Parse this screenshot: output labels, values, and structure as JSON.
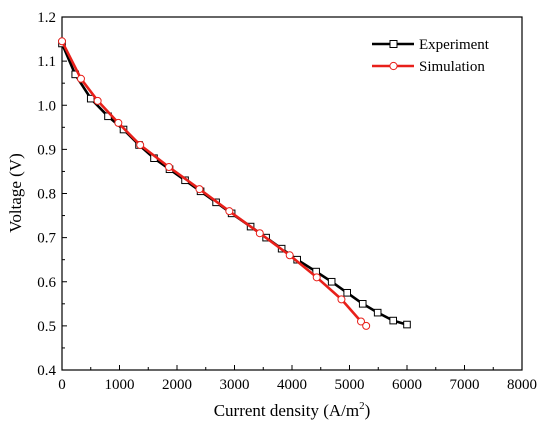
{
  "chart_data": {
    "type": "line",
    "title": "",
    "xlabel": "Current density (A/m",
    "xlabel_sup": "2",
    "xlabel_end": ")",
    "ylabel": "Voltage (V)",
    "xlim": [
      0,
      8000
    ],
    "ylim": [
      0.4,
      1.2
    ],
    "xticks": [
      "0",
      "1000",
      "2000",
      "3000",
      "4000",
      "5000",
      "6000",
      "7000",
      "8000"
    ],
    "yticks": [
      "0.4",
      "0.5",
      "0.6",
      "0.7",
      "0.8",
      "0.9",
      "1.0",
      "1.1",
      "1.2"
    ],
    "grid": false,
    "legend_position": "top-right",
    "series": [
      {
        "name": "Experiment",
        "color": "#000000",
        "marker": "square",
        "x": [
          0,
          230,
          500,
          800,
          1070,
          1340,
          1600,
          1870,
          2140,
          2410,
          2680,
          2950,
          3280,
          3550,
          3820,
          4090,
          4420,
          4690,
          4960,
          5230,
          5490,
          5760,
          6000
        ],
        "y": [
          1.14,
          1.07,
          1.015,
          0.975,
          0.945,
          0.91,
          0.88,
          0.855,
          0.83,
          0.805,
          0.78,
          0.755,
          0.725,
          0.7,
          0.675,
          0.65,
          0.623,
          0.6,
          0.575,
          0.55,
          0.53,
          0.512,
          0.503
        ]
      },
      {
        "name": "Simulation",
        "color": "#e8201a",
        "marker": "circle",
        "x": [
          0,
          330,
          620,
          980,
          1360,
          1860,
          2390,
          2910,
          3440,
          3960,
          4430,
          4860,
          5200,
          5290
        ],
        "y": [
          1.145,
          1.06,
          1.01,
          0.96,
          0.91,
          0.86,
          0.81,
          0.76,
          0.71,
          0.66,
          0.61,
          0.56,
          0.51,
          0.5
        ]
      }
    ]
  }
}
